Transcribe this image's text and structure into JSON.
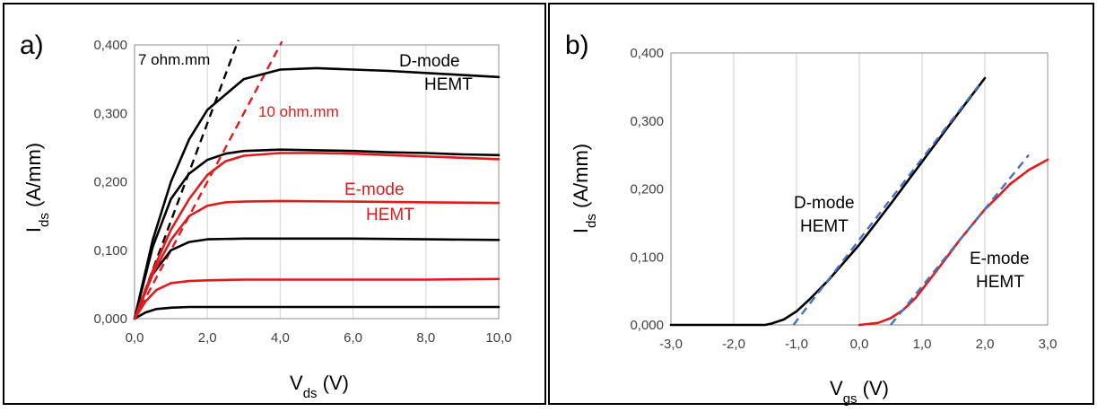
{
  "chart_data": [
    {
      "type": "line",
      "panel_label": "a)",
      "xlabel": {
        "main": "V",
        "sub": "ds",
        "unit": " (V)"
      },
      "ylabel": {
        "main": "I",
        "sub": "ds",
        "unit": " (A/mm)"
      },
      "xlim": [
        0,
        10
      ],
      "ylim": [
        0,
        0.4
      ],
      "xticks": [
        0,
        2,
        4,
        6,
        8,
        10
      ],
      "xtick_labels": [
        "0,0",
        "2,0",
        "4,0",
        "6,0",
        "8,0",
        "10,0"
      ],
      "yticks": [
        0,
        0.1,
        0.2,
        0.3,
        0.4
      ],
      "ytick_labels": [
        "0,000",
        "0,100",
        "0,200",
        "0,300",
        "0,400"
      ],
      "grid": "vertical",
      "colors": {
        "d_mode": "#000000",
        "e_mode": "#e31a1c"
      },
      "series": [
        {
          "group": "d_mode",
          "x": [
            0,
            0.5,
            1,
            1.5,
            2,
            3,
            4,
            5,
            6,
            7,
            8,
            9,
            10
          ],
          "y": [
            0,
            0.115,
            0.2,
            0.262,
            0.305,
            0.35,
            0.364,
            0.366,
            0.364,
            0.362,
            0.359,
            0.356,
            0.353
          ]
        },
        {
          "group": "d_mode",
          "x": [
            0,
            0.5,
            1,
            1.5,
            2,
            2.5,
            3,
            4,
            5,
            6,
            7,
            8,
            9,
            10
          ],
          "y": [
            0,
            0.105,
            0.175,
            0.212,
            0.232,
            0.241,
            0.245,
            0.247,
            0.246,
            0.245,
            0.243,
            0.242,
            0.24,
            0.239
          ]
        },
        {
          "group": "d_mode",
          "x": [
            0,
            0.5,
            1,
            1.5,
            2,
            3,
            4,
            6,
            8,
            10
          ],
          "y": [
            0,
            0.065,
            0.1,
            0.112,
            0.116,
            0.117,
            0.117,
            0.117,
            0.116,
            0.115
          ]
        },
        {
          "group": "d_mode",
          "x": [
            0,
            0.3,
            0.6,
            1,
            1.5,
            2,
            4,
            6,
            8,
            10
          ],
          "y": [
            0,
            0.009,
            0.014,
            0.016,
            0.017,
            0.017,
            0.017,
            0.017,
            0.017,
            0.017
          ]
        },
        {
          "group": "e_mode",
          "x": [
            0,
            0.5,
            1,
            1.5,
            2,
            2.5,
            3,
            4,
            5,
            6,
            7,
            8,
            9,
            10
          ],
          "y": [
            0,
            0.07,
            0.13,
            0.175,
            0.21,
            0.23,
            0.238,
            0.242,
            0.242,
            0.241,
            0.239,
            0.237,
            0.235,
            0.233
          ]
        },
        {
          "group": "e_mode",
          "x": [
            0,
            0.5,
            1,
            1.5,
            2,
            2.5,
            3,
            4,
            6,
            8,
            10
          ],
          "y": [
            0,
            0.065,
            0.115,
            0.15,
            0.165,
            0.17,
            0.171,
            0.172,
            0.171,
            0.17,
            0.169
          ]
        },
        {
          "group": "e_mode",
          "x": [
            0,
            0.3,
            0.6,
            1,
            1.5,
            2,
            3,
            4,
            6,
            8,
            10
          ],
          "y": [
            0,
            0.025,
            0.042,
            0.052,
            0.055,
            0.056,
            0.057,
            0.057,
            0.057,
            0.057,
            0.058
          ]
        }
      ],
      "fit_lines": [
        {
          "label": "7 ohm.mm",
          "color": "#000000",
          "x": [
            0,
            2.85
          ],
          "y": [
            0,
            0.407
          ]
        },
        {
          "label": "10 ohm.mm",
          "color": "#e31a1c",
          "x": [
            0,
            4.05
          ],
          "y": [
            0,
            0.405
          ]
        }
      ],
      "annotations": [
        {
          "text": "D-mode",
          "color": "#000000"
        },
        {
          "text": "HEMT",
          "color": "#000000"
        },
        {
          "text": "E-mode",
          "color": "#e31a1c"
        },
        {
          "text": "HEMT",
          "color": "#e31a1c"
        }
      ]
    },
    {
      "type": "line",
      "panel_label": "b)",
      "xlabel": {
        "main": "V",
        "sub": "gs",
        "unit": " (V)"
      },
      "ylabel": {
        "main": "I",
        "sub": "ds",
        "unit": " (A/mm)"
      },
      "xlim": [
        -3,
        3
      ],
      "ylim": [
        0,
        0.4
      ],
      "xticks": [
        -3,
        -2,
        -1,
        0,
        1,
        2,
        3
      ],
      "xtick_labels": [
        "-3,0",
        "-2,0",
        "-1,0",
        "0,0",
        "1,0",
        "2,0",
        "3,0"
      ],
      "yticks": [
        0,
        0.1,
        0.2,
        0.3,
        0.4
      ],
      "ytick_labels": [
        "0,000",
        "0,100",
        "0,200",
        "0,300",
        "0,400"
      ],
      "grid": "vertical",
      "colors": {
        "d_mode": "#000000",
        "e_mode": "#e31a1c",
        "fit": "#4472c4"
      },
      "series": [
        {
          "group": "d_mode",
          "x": [
            -3,
            -2,
            -1.5,
            -1.4,
            -1.2,
            -1,
            -0.8,
            -0.5,
            0,
            0.5,
            1,
            1.5,
            2
          ],
          "y": [
            0,
            0,
            0,
            0.002,
            0.008,
            0.02,
            0.037,
            0.065,
            0.118,
            0.178,
            0.24,
            0.302,
            0.363
          ]
        },
        {
          "group": "e_mode",
          "x": [
            0,
            0.3,
            0.5,
            0.7,
            0.9,
            1,
            1.3,
            1.6,
            2,
            2.2,
            2.4,
            2.7,
            3
          ],
          "y": [
            0,
            0.003,
            0.01,
            0.022,
            0.04,
            0.052,
            0.088,
            0.125,
            0.17,
            0.188,
            0.207,
            0.228,
            0.243
          ]
        }
      ],
      "fit_lines": [
        {
          "color": "#4472c4",
          "x": [
            -1.05,
            1.9
          ],
          "y": [
            0,
            0.352
          ]
        },
        {
          "color": "#4472c4",
          "x": [
            0.5,
            2.7
          ],
          "y": [
            0,
            0.25
          ]
        }
      ],
      "annotations": [
        {
          "text": "D-mode",
          "color": "#000000"
        },
        {
          "text": "HEMT",
          "color": "#000000"
        },
        {
          "text": "E-mode",
          "color": "#000000"
        },
        {
          "text": "HEMT",
          "color": "#000000"
        }
      ]
    }
  ]
}
